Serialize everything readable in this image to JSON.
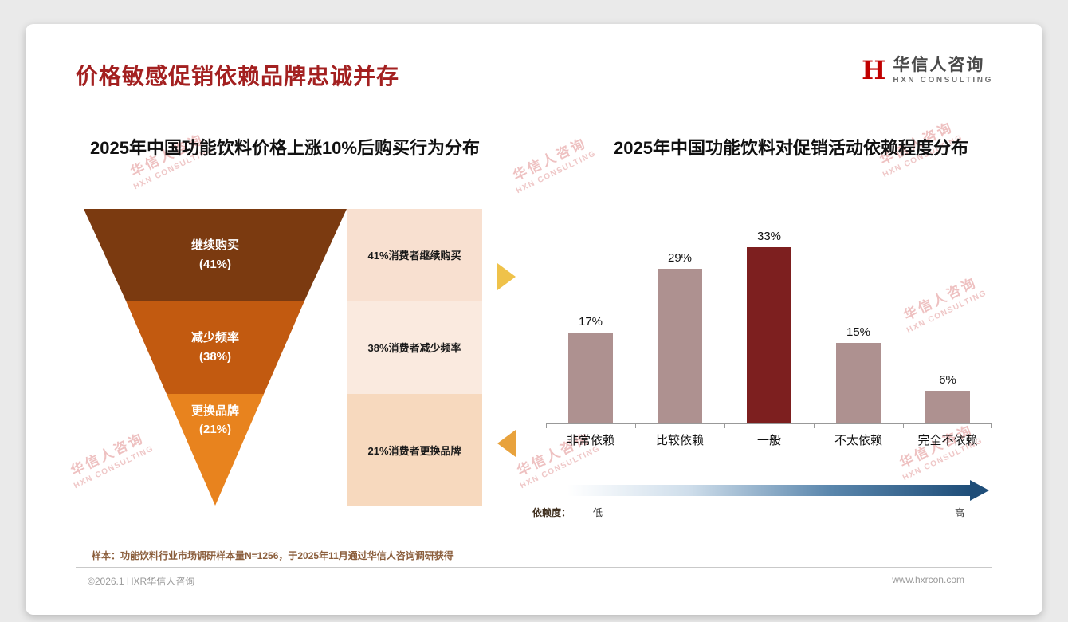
{
  "page": {
    "title": "价格敏感促销依赖品牌忠诚并存",
    "footer_note": "样本：功能饮料行业市场调研样本量N=1256，于2025年11月通过华信人咨询调研获得",
    "copyright": "©2026.1 HXR华信人咨询",
    "website": "www.hxrcon.com"
  },
  "logo": {
    "mark": "H",
    "name_cn": "华信人咨询",
    "name_en": "HXN CONSULTING"
  },
  "watermark": {
    "line1": "华信人咨询",
    "line2": "HXN CONSULTING"
  },
  "colors": {
    "title_red": "#A32020",
    "gold_arrow_top": "#EFC24A",
    "gold_arrow_bottom": "#E8A23C",
    "gradient_start": "#FFFFFF",
    "gradient_end": "#1F4E79",
    "watermark_pink": "#D66C6C"
  },
  "chart_data": [
    {
      "type": "funnel",
      "title": "2025年中国功能饮料价格上涨10%后购买行为分布",
      "segments": [
        {
          "label": "继续购买",
          "value": 41,
          "value_label": "(41%)",
          "annotation": "41%消费者继续购买",
          "color": "#7B3A10",
          "box_color": "#F8E0D0"
        },
        {
          "label": "减少频率",
          "value": 38,
          "value_label": "(38%)",
          "annotation": "38%消费者减少频率",
          "color": "#C25A10",
          "box_color": "#FAEADF"
        },
        {
          "label": "更换品牌",
          "value": 21,
          "value_label": "(21%)",
          "annotation": "21%消费者更换品牌",
          "color": "#E8831E",
          "box_color": "#F7D9BE"
        }
      ]
    },
    {
      "type": "bar",
      "title": "2025年中国功能饮料对促销活动依赖程度分布",
      "categories": [
        "非常依赖",
        "比较依赖",
        "一般",
        "不太依赖",
        "完全不依赖"
      ],
      "values": [
        17,
        29,
        33,
        15,
        6
      ],
      "value_labels": [
        "17%",
        "29%",
        "33%",
        "15%",
        "6%"
      ],
      "bar_colors": [
        "#AE9190",
        "#AE9190",
        "#7D1F1F",
        "#AE9190",
        "#AE9190"
      ],
      "ylim": [
        0,
        35
      ],
      "grid": false,
      "legend": false,
      "axis": {
        "label": "依赖度：",
        "low": "低",
        "high": "高"
      }
    }
  ]
}
